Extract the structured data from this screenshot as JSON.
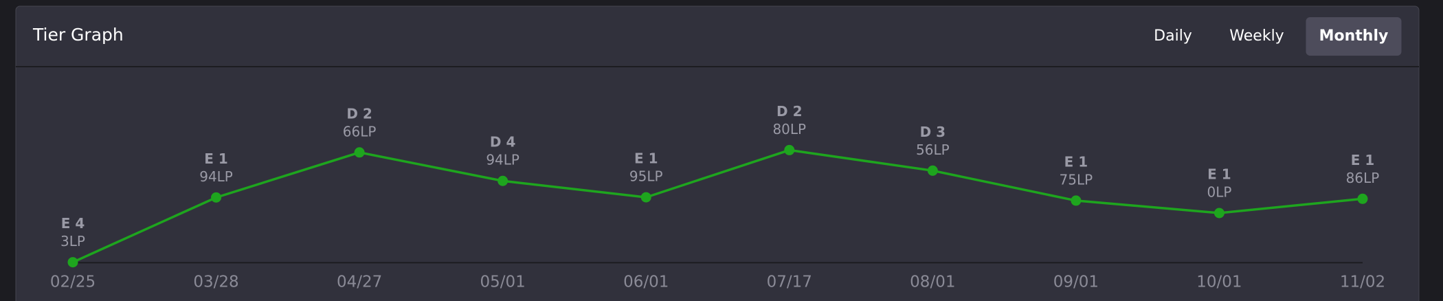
{
  "chart_data": {
    "type": "line",
    "title": "Tier Graph",
    "tabs": [
      "Daily",
      "Weekly",
      "Monthly"
    ],
    "active_tab": "Monthly",
    "categories": [
      "02/25",
      "03/28",
      "04/27",
      "05/01",
      "06/01",
      "07/17",
      "08/01",
      "09/01",
      "10/01",
      "11/02"
    ],
    "tiers": [
      "E 4",
      "E 1",
      "D 2",
      "D 4",
      "E 1",
      "D 2",
      "D 3",
      "E 1",
      "E 1",
      "E 1"
    ],
    "lp": [
      "3LP",
      "94LP",
      "66LP",
      "94LP",
      "95LP",
      "80LP",
      "56LP",
      "75LP",
      "0LP",
      "86LP"
    ],
    "values": [
      3,
      394,
      666,
      494,
      395,
      680,
      556,
      375,
      300,
      386
    ],
    "color": "#1ea51e",
    "ylim": [
      0,
      700
    ]
  }
}
